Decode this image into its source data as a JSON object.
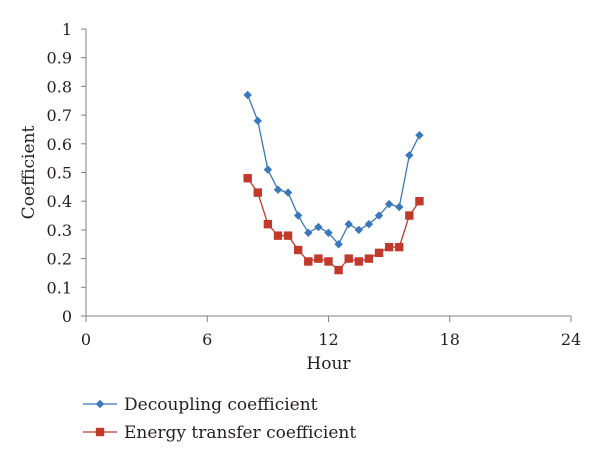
{
  "chart_data": {
    "type": "line",
    "title": "",
    "xlabel": "Hour",
    "ylabel": "Coefficient",
    "xlim": [
      0,
      24
    ],
    "ylim": [
      0,
      1
    ],
    "xticks": [
      0,
      6,
      12,
      18,
      24
    ],
    "yticks": [
      0,
      0.1,
      0.2,
      0.3,
      0.4,
      0.5,
      0.6,
      0.7,
      0.8,
      0.9,
      1
    ],
    "xtick_labels": [
      "0",
      "6",
      "12",
      "18",
      "24"
    ],
    "ytick_labels": [
      "0",
      "0.1",
      "0.2",
      "0.3",
      "0.4",
      "0.5",
      "0.6",
      "0.7",
      "0.8",
      "0.9",
      "1"
    ],
    "grid": false,
    "legend_position": "bottom-left",
    "series": [
      {
        "name": "Decoupling coefficient",
        "color": "#3a78b9",
        "marker": "diamond",
        "x": [
          8,
          8.5,
          9,
          9.5,
          10,
          10.5,
          11,
          11.5,
          12,
          12.5,
          13,
          13.5,
          14,
          14.5,
          15,
          15.5,
          16,
          16.5
        ],
        "y": [
          0.77,
          0.68,
          0.51,
          0.44,
          0.43,
          0.35,
          0.29,
          0.31,
          0.29,
          0.25,
          0.32,
          0.3,
          0.32,
          0.35,
          0.39,
          0.38,
          0.56,
          0.63
        ]
      },
      {
        "name": "Energy transfer coefficient",
        "color": "#c0392b",
        "marker": "square",
        "x": [
          8,
          8.5,
          9,
          9.5,
          10,
          10.5,
          11,
          11.5,
          12,
          12.5,
          13,
          13.5,
          14,
          14.5,
          15,
          15.5,
          16,
          16.5
        ],
        "y": [
          0.48,
          0.43,
          0.32,
          0.28,
          0.28,
          0.23,
          0.19,
          0.2,
          0.19,
          0.16,
          0.2,
          0.19,
          0.2,
          0.22,
          0.24,
          0.24,
          0.35,
          0.4
        ]
      }
    ]
  }
}
